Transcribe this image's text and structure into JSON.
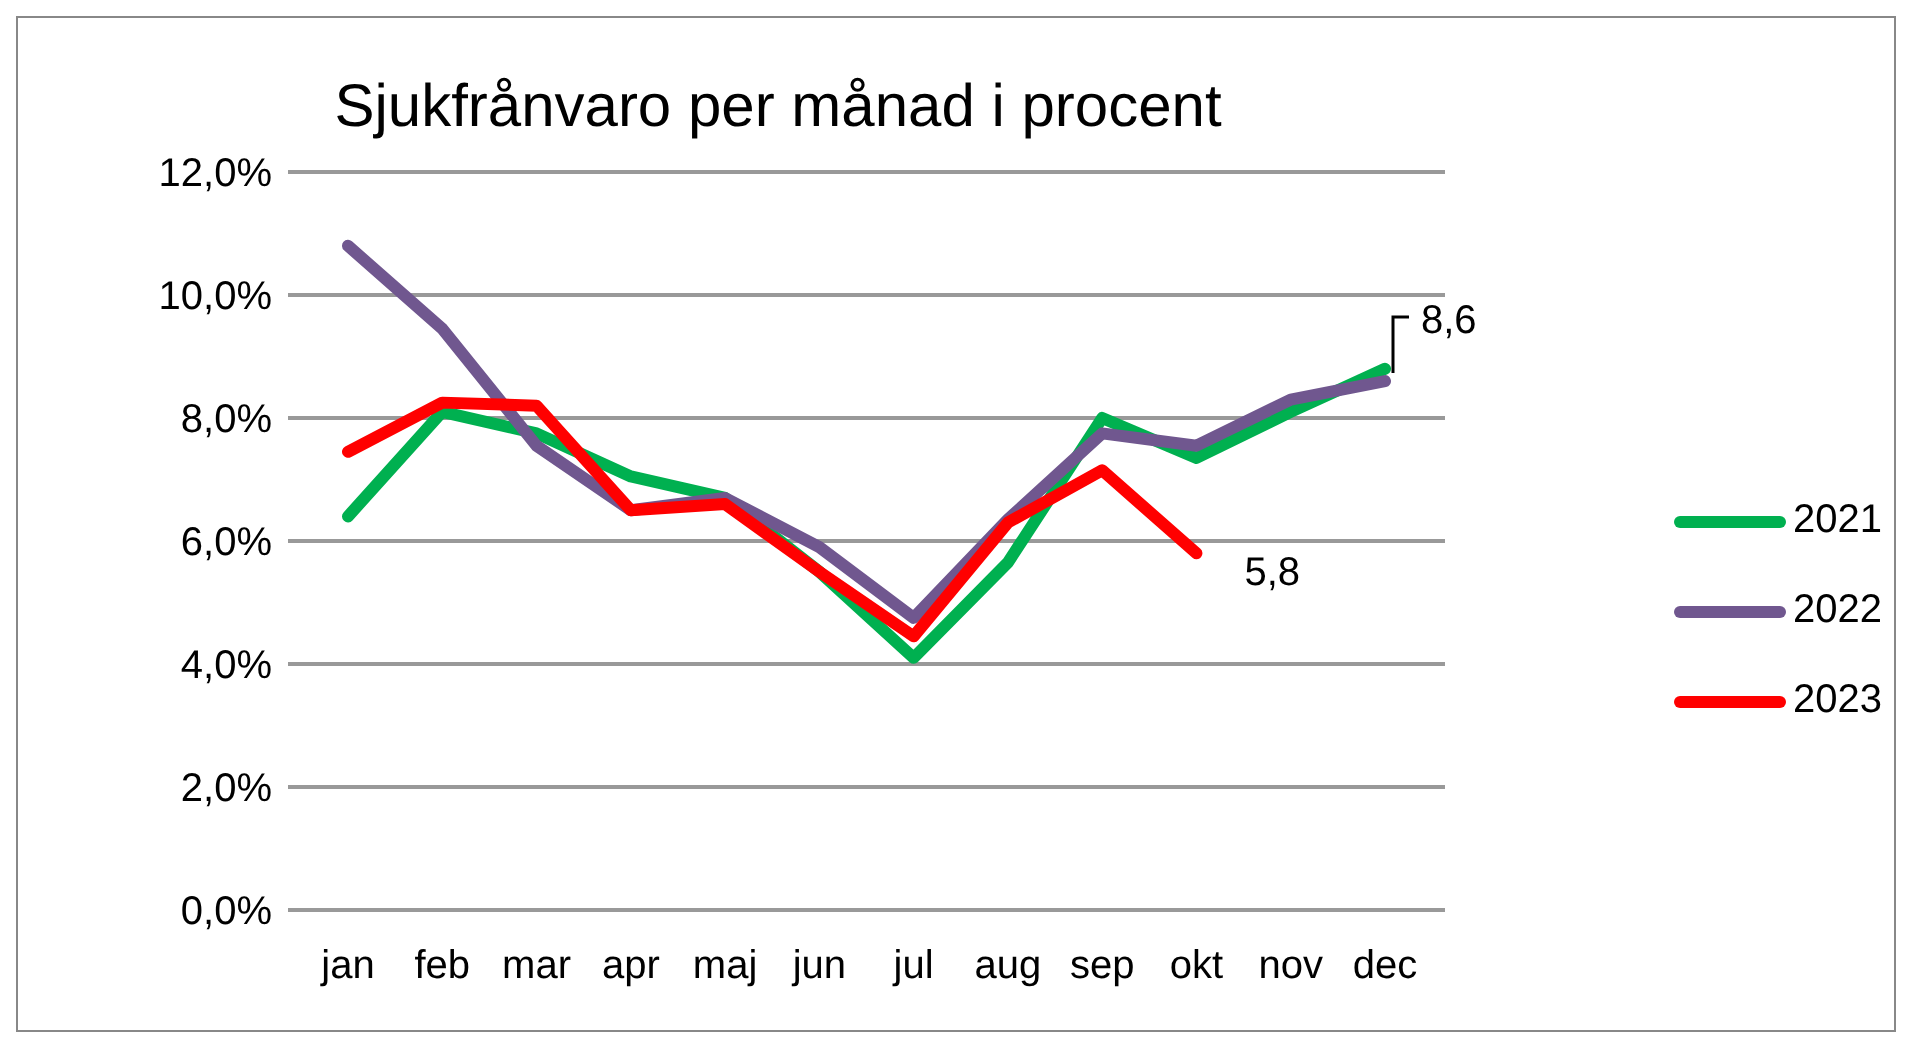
{
  "chart_data": {
    "type": "line",
    "title": "Sjukfrånvaro per månad i procent",
    "categories": [
      "jan",
      "feb",
      "mar",
      "apr",
      "maj",
      "jun",
      "jul",
      "aug",
      "sep",
      "okt",
      "nov",
      "dec"
    ],
    "series": [
      {
        "name": "2021",
        "color": "#00b050",
        "values": [
          6.4,
          8.1,
          7.75,
          7.05,
          6.7,
          5.5,
          4.1,
          5.65,
          8.0,
          7.35,
          8.1,
          8.8
        ]
      },
      {
        "name": "2022",
        "color": "#70578f",
        "values": [
          10.8,
          9.45,
          7.55,
          6.5,
          6.7,
          5.9,
          4.75,
          6.35,
          7.75,
          7.55,
          8.3,
          8.6
        ],
        "value_labels": [
          null,
          null,
          null,
          null,
          null,
          null,
          null,
          null,
          null,
          null,
          null,
          "8,6"
        ]
      },
      {
        "name": "2023",
        "color": "#ff0000",
        "values": [
          7.45,
          8.25,
          8.2,
          6.5,
          6.6,
          5.5,
          4.45,
          6.3,
          7.15,
          5.8,
          null,
          null
        ],
        "value_labels": [
          null,
          null,
          null,
          null,
          null,
          null,
          null,
          null,
          null,
          "5,8",
          null,
          null
        ]
      }
    ],
    "ylim": [
      0,
      12
    ],
    "yticks": [
      {
        "value": 0,
        "label": "0,0%"
      },
      {
        "value": 2,
        "label": "2,0%"
      },
      {
        "value": 4,
        "label": "4,0%"
      },
      {
        "value": 6,
        "label": "6,0%"
      },
      {
        "value": 8,
        "label": "8,0%"
      },
      {
        "value": 10,
        "label": "10,0%"
      },
      {
        "value": 12,
        "label": "12,0%"
      }
    ],
    "grid": "y",
    "legend": "right",
    "marker": "none",
    "line_style": "solid"
  }
}
